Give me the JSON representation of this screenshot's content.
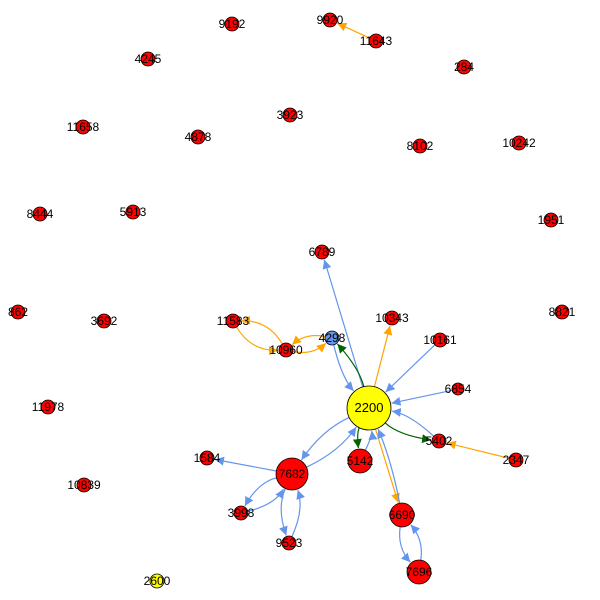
{
  "colors": {
    "red_node": "#ff0000",
    "yellow_node": "#ffff00",
    "blue_node": "#6495ed",
    "edge_blue": "#6495ed",
    "edge_orange": "#ffa500",
    "edge_green": "#006400",
    "outline": "#000000"
  },
  "nodes": [
    {
      "id": "n9192",
      "label": "9192",
      "color": "red_node",
      "size": "small"
    },
    {
      "id": "n9920",
      "label": "9920",
      "color": "red_node",
      "size": "small"
    },
    {
      "id": "n11643",
      "label": "11643",
      "color": "red_node",
      "size": "small"
    },
    {
      "id": "n4245",
      "label": "4245",
      "color": "red_node",
      "size": "small"
    },
    {
      "id": "n284",
      "label": "284",
      "color": "red_node",
      "size": "small"
    },
    {
      "id": "n11658",
      "label": "11658",
      "color": "red_node",
      "size": "small"
    },
    {
      "id": "n4878",
      "label": "4878",
      "color": "red_node",
      "size": "small"
    },
    {
      "id": "n3923",
      "label": "3923",
      "color": "red_node",
      "size": "small"
    },
    {
      "id": "n8102",
      "label": "8102",
      "color": "red_node",
      "size": "small"
    },
    {
      "id": "n10242",
      "label": "10242",
      "color": "red_node",
      "size": "small"
    },
    {
      "id": "n8444",
      "label": "8444",
      "color": "red_node",
      "size": "small"
    },
    {
      "id": "n5913",
      "label": "5913",
      "color": "red_node",
      "size": "small"
    },
    {
      "id": "n1951",
      "label": "1951",
      "color": "red_node",
      "size": "small"
    },
    {
      "id": "n6789",
      "label": "6789",
      "color": "red_node",
      "size": "small"
    },
    {
      "id": "n862",
      "label": "862",
      "color": "red_node",
      "size": "small"
    },
    {
      "id": "n3692",
      "label": "3692",
      "color": "red_node",
      "size": "small"
    },
    {
      "id": "n11583",
      "label": "11583",
      "color": "red_node",
      "size": "small"
    },
    {
      "id": "n10343",
      "label": "10343",
      "color": "red_node",
      "size": "small"
    },
    {
      "id": "n8821",
      "label": "8821",
      "color": "red_node",
      "size": "small"
    },
    {
      "id": "n4298",
      "label": "4298",
      "color": "blue_node",
      "size": "small"
    },
    {
      "id": "n10960",
      "label": "10960",
      "color": "red_node",
      "size": "small"
    },
    {
      "id": "n10161",
      "label": "10161",
      "color": "red_node",
      "size": "small"
    },
    {
      "id": "n6854",
      "label": "6854",
      "color": "red_node",
      "size": "tiny"
    },
    {
      "id": "n11978",
      "label": "11978",
      "color": "red_node",
      "size": "small"
    },
    {
      "id": "n2200",
      "label": "2200",
      "color": "yellow_node",
      "size": "big"
    },
    {
      "id": "n5402",
      "label": "5402",
      "color": "red_node",
      "size": "small"
    },
    {
      "id": "n1584",
      "label": "1584",
      "color": "red_node",
      "size": "small"
    },
    {
      "id": "n7682",
      "label": "7682",
      "color": "red_node",
      "size": "large"
    },
    {
      "id": "n5142",
      "label": "5142",
      "color": "red_node",
      "size": "medium"
    },
    {
      "id": "n2347",
      "label": "2347",
      "color": "red_node",
      "size": "small"
    },
    {
      "id": "n10839",
      "label": "10839",
      "color": "red_node",
      "size": "small"
    },
    {
      "id": "n3998",
      "label": "3998",
      "color": "red_node",
      "size": "small"
    },
    {
      "id": "n6690",
      "label": "6690",
      "color": "red_node",
      "size": "medium"
    },
    {
      "id": "n9523",
      "label": "9523",
      "color": "red_node",
      "size": "small"
    },
    {
      "id": "n7696",
      "label": "7696",
      "color": "red_node",
      "size": "medium"
    },
    {
      "id": "n2600",
      "label": "2600",
      "color": "yellow_node",
      "size": "small"
    }
  ],
  "edges": [
    {
      "from": "n11643",
      "to": "n9920",
      "color": "edge_orange"
    },
    {
      "from": "n2200",
      "to": "n6789",
      "color": "edge_blue"
    },
    {
      "from": "n2200",
      "to": "n4298",
      "color": "edge_green"
    },
    {
      "from": "n2200",
      "to": "n10343",
      "color": "edge_orange"
    },
    {
      "from": "n10161",
      "to": "n2200",
      "color": "edge_blue"
    },
    {
      "from": "n6854",
      "to": "n2200",
      "color": "edge_blue"
    },
    {
      "from": "n4298",
      "to": "n2200",
      "color": "edge_blue"
    },
    {
      "from": "n11583",
      "to": "n10960",
      "color": "edge_orange"
    },
    {
      "from": "n10960",
      "to": "n11583",
      "color": "edge_orange"
    },
    {
      "from": "n10960",
      "to": "n4298",
      "color": "edge_orange"
    },
    {
      "from": "n4298",
      "to": "n10960",
      "color": "edge_orange"
    },
    {
      "from": "n2200",
      "to": "n7682",
      "color": "edge_blue"
    },
    {
      "from": "n7682",
      "to": "n2200",
      "color": "edge_blue"
    },
    {
      "from": "n2200",
      "to": "n5142",
      "color": "edge_green"
    },
    {
      "from": "n5142",
      "to": "n2200",
      "color": "edge_blue"
    },
    {
      "from": "n2200",
      "to": "n5402",
      "color": "edge_green"
    },
    {
      "from": "n5402",
      "to": "n2200",
      "color": "edge_blue"
    },
    {
      "from": "n2347",
      "to": "n5402",
      "color": "edge_orange"
    },
    {
      "from": "n2200",
      "to": "n6690",
      "color": "edge_orange"
    },
    {
      "from": "n6690",
      "to": "n2200",
      "color": "edge_blue"
    },
    {
      "from": "n7682",
      "to": "n1584",
      "color": "edge_blue"
    },
    {
      "from": "n7682",
      "to": "n3998",
      "color": "edge_blue"
    },
    {
      "from": "n3998",
      "to": "n7682",
      "color": "edge_blue"
    },
    {
      "from": "n7682",
      "to": "n9523",
      "color": "edge_blue"
    },
    {
      "from": "n9523",
      "to": "n7682",
      "color": "edge_blue"
    },
    {
      "from": "n6690",
      "to": "n7696",
      "color": "edge_blue"
    },
    {
      "from": "n7696",
      "to": "n6690",
      "color": "edge_blue"
    }
  ]
}
